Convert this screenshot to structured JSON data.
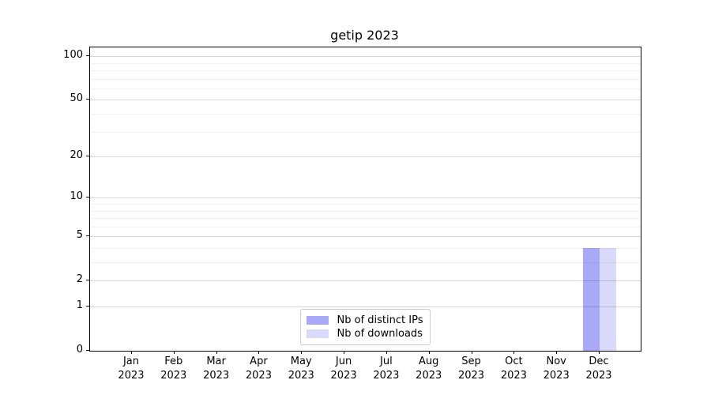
{
  "figure": {
    "title": "getip 2023"
  },
  "chart_data": {
    "type": "bar",
    "title": "getip 2023",
    "categories": [
      "Jan 2023",
      "Feb 2023",
      "Mar 2023",
      "Apr 2023",
      "May 2023",
      "Jun 2023",
      "Jul 2023",
      "Aug 2023",
      "Sep 2023",
      "Oct 2023",
      "Nov 2023",
      "Dec 2023"
    ],
    "x_tick_months": [
      "Jan",
      "Feb",
      "Mar",
      "Apr",
      "May",
      "Jun",
      "Jul",
      "Aug",
      "Sep",
      "Oct",
      "Nov",
      "Dec"
    ],
    "x_tick_year": "2023",
    "series": [
      {
        "name": "Nb of distinct IPs",
        "color": "#a9a9f7",
        "values": [
          0,
          0,
          0,
          0,
          0,
          0,
          0,
          0,
          0,
          0,
          0,
          4
        ]
      },
      {
        "name": "Nb of downloads",
        "color": "#d9d9f9",
        "values": [
          0,
          0,
          0,
          0,
          0,
          0,
          0,
          0,
          0,
          0,
          0,
          4
        ]
      }
    ],
    "xlabel": "",
    "ylabel": "",
    "y_ticks": [
      0,
      1,
      2,
      5,
      10,
      20,
      50,
      100
    ],
    "y_minor_gridlines": [
      3,
      4,
      6,
      7,
      8,
      9,
      30,
      40,
      60,
      70,
      80,
      90
    ],
    "yscale": "symlog (log1p)",
    "ylim": [
      0,
      115
    ],
    "grid": true,
    "legend": {
      "entries": [
        "Nb of distinct IPs",
        "Nb of downloads"
      ],
      "position": "lower center"
    }
  },
  "colors": {
    "bar_distinct_ips": "#a9a9f7",
    "bar_downloads": "#d9d9f9",
    "frame": "#000000",
    "legend_border": "#cccccc",
    "background": "#ffffff"
  }
}
